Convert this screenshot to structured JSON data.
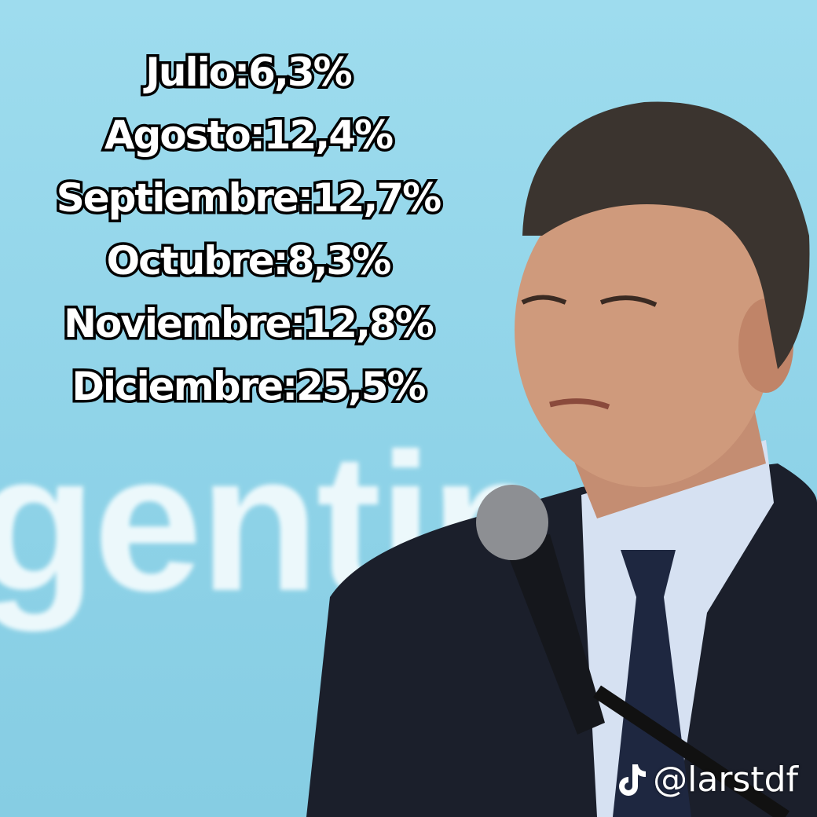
{
  "overlay": {
    "lines": [
      "Julio:6,3%",
      "Agosto:12,4%",
      "Septiembre:12,7%",
      "Octubre:8,3%",
      "Noviembre:12,8%",
      "Diciembre:25,5%"
    ]
  },
  "background": {
    "sign_text": "gentin"
  },
  "watermark": {
    "handle": "@larstdf"
  }
}
